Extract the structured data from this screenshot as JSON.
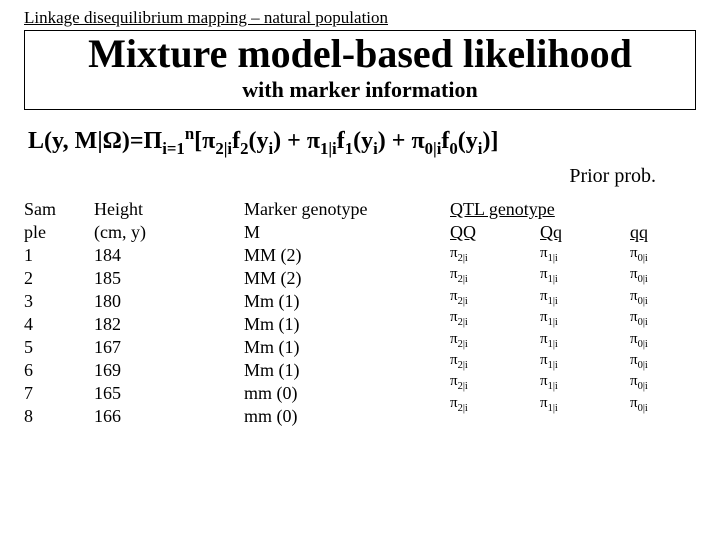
{
  "header": "Linkage disequilibrium mapping – natural population",
  "title": {
    "main": "Mixture model-based likelihood",
    "sub": "with marker information"
  },
  "formula": {
    "lhs": "L(y, M|",
    "omega": "Ω",
    "rhs1": ")=",
    "prod": "Π",
    "prodsub": "i=1",
    "prodsup": "n",
    "open": "[",
    "pi": "π",
    "t2": "2|i",
    "f": "f",
    "f2s": "2",
    "yi": "(y",
    "isub": "i",
    "close_paren": ")",
    "plus": " + ",
    "t1": "1|i",
    "f1s": "1",
    "t0": "0|i",
    "f0s": "0",
    "end": "]"
  },
  "prior": "Prior prob.",
  "columns": {
    "sample_h1": "Sam",
    "sample_h2": "ple",
    "height_h1": "Height",
    "height_h2": "(cm, y)",
    "marker_h1": "Marker genotype",
    "marker_h2": "M",
    "qtl_title": "QTL genotype",
    "qq_upper": "QQ",
    "qq_mixed": "Qq",
    "qq_lower": "qq"
  },
  "samples": [
    "1",
    "2",
    "3",
    "4",
    "5",
    "6",
    "7",
    "8"
  ],
  "heights": [
    "184",
    "185",
    "180",
    "182",
    "167",
    "169",
    "165",
    "166"
  ],
  "markers": [
    "MM (2)",
    "MM (2)",
    "Mm (1)",
    "Mm (1)",
    "Mm (1)",
    "Mm (1)",
    "mm (0)",
    "mm (0)"
  ],
  "qtl_pi": {
    "p": "π",
    "s2": "2|i",
    "s1": "1|i",
    "s0": "0|i"
  }
}
